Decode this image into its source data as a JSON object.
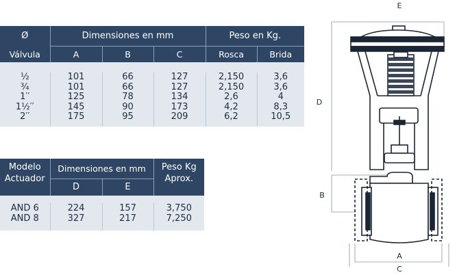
{
  "valve_table": {
    "col_diameter": "Ø",
    "col_valve": "Válvula",
    "dimensions_header": "Dimensiones en mm",
    "weight_header": "Peso en Kg.",
    "col_a": "A",
    "col_b": "B",
    "col_c": "C",
    "col_rosca": "Rosca",
    "col_brida": "Brida",
    "rows": [
      {
        "size": "½",
        "a": "101",
        "b": "66",
        "c": "127",
        "rosca": "2,150",
        "brida": "3,6"
      },
      {
        "size": "¾",
        "a": "101",
        "b": "66",
        "c": "127",
        "rosca": "2,150",
        "brida": "3,6"
      },
      {
        "size": "1′′",
        "a": "125",
        "b": "78",
        "c": "134",
        "rosca": "2,6",
        "brida": "4"
      },
      {
        "size": "1½′′",
        "a": "145",
        "b": "90",
        "c": "173",
        "rosca": "4,2",
        "brida": "8,3"
      },
      {
        "size": "2′′",
        "a": "175",
        "b": "95",
        "c": "209",
        "rosca": "6,2",
        "brida": "10,5"
      }
    ]
  },
  "actuator_table": {
    "col_model_1": "Modelo",
    "col_model_2": "Actuador",
    "dimensions_header": "Dimensiones en mm",
    "col_d": "D",
    "col_e": "E",
    "weight_header_1": "Peso Kg",
    "weight_header_2": "Aprox.",
    "rows": [
      {
        "model": "AND 6",
        "d": "224",
        "e": "157",
        "weight": "3,750"
      },
      {
        "model": "AND 8",
        "d": "327",
        "e": "217",
        "weight": "7,250"
      }
    ]
  },
  "diagram": {
    "label_e": "E",
    "label_d": "D",
    "label_b": "B",
    "label_a": "A",
    "label_c": "C"
  }
}
